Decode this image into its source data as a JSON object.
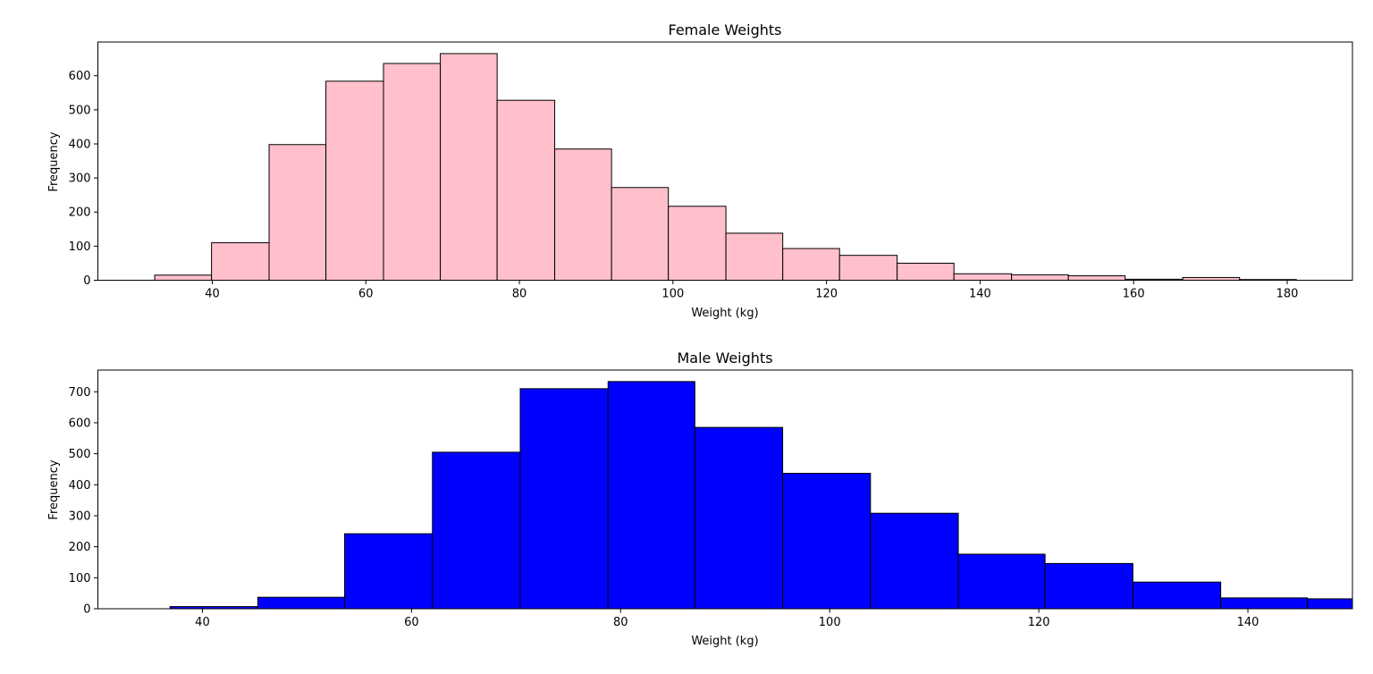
{
  "chart_data": [
    {
      "type": "bar",
      "title": "Female Weights",
      "xlabel": "Weight (kg)",
      "ylabel": "Frequency",
      "color": "#ffc0cb",
      "edgecolor": "#000000",
      "xlim": [
        25.1,
        188.5
      ],
      "ylim": [
        0,
        699
      ],
      "xticks": [
        40,
        60,
        80,
        100,
        120,
        140,
        160,
        180
      ],
      "yticks": [
        0,
        100,
        200,
        300,
        400,
        500,
        600
      ],
      "grid": false,
      "bins": [
        {
          "x0": 32.5,
          "x1": 39.9,
          "value": 15
        },
        {
          "x0": 39.9,
          "x1": 47.4,
          "value": 110
        },
        {
          "x0": 47.4,
          "x1": 54.8,
          "value": 398
        },
        {
          "x0": 54.8,
          "x1": 62.3,
          "value": 584
        },
        {
          "x0": 62.3,
          "x1": 69.7,
          "value": 636
        },
        {
          "x0": 69.7,
          "x1": 77.1,
          "value": 665
        },
        {
          "x0": 77.1,
          "x1": 84.6,
          "value": 528
        },
        {
          "x0": 84.6,
          "x1": 92.0,
          "value": 385
        },
        {
          "x0": 92.0,
          "x1": 99.4,
          "value": 272
        },
        {
          "x0": 99.4,
          "x1": 106.9,
          "value": 217
        },
        {
          "x0": 106.9,
          "x1": 114.3,
          "value": 138
        },
        {
          "x0": 114.3,
          "x1": 121.7,
          "value": 93
        },
        {
          "x0": 121.7,
          "x1": 129.2,
          "value": 73
        },
        {
          "x0": 129.2,
          "x1": 136.6,
          "value": 50
        },
        {
          "x0": 136.6,
          "x1": 144.1,
          "value": 19
        },
        {
          "x0": 144.1,
          "x1": 151.5,
          "value": 16
        },
        {
          "x0": 151.5,
          "x1": 158.9,
          "value": 13
        },
        {
          "x0": 158.9,
          "x1": 166.4,
          "value": 3
        },
        {
          "x0": 166.4,
          "x1": 173.8,
          "value": 8
        },
        {
          "x0": 173.8,
          "x1": 181.2,
          "value": 2
        }
      ]
    },
    {
      "type": "bar",
      "title": "Male Weights",
      "xlabel": "Weight (kg)",
      "ylabel": "Frequency",
      "color": "#0000ff",
      "edgecolor": "#000000",
      "xlim": [
        30,
        150
      ],
      "ylim": [
        0,
        770
      ],
      "xticks": [
        40,
        60,
        80,
        100,
        120,
        140
      ],
      "yticks": [
        0,
        100,
        200,
        300,
        400,
        500,
        600,
        700
      ],
      "grid": false,
      "bins": [
        {
          "x0": 36.9,
          "x1": 45.3,
          "value": 7
        },
        {
          "x0": 45.3,
          "x1": 53.6,
          "value": 37
        },
        {
          "x0": 53.6,
          "x1": 62.0,
          "value": 242
        },
        {
          "x0": 62.0,
          "x1": 70.4,
          "value": 505
        },
        {
          "x0": 70.4,
          "x1": 78.8,
          "value": 710
        },
        {
          "x0": 78.8,
          "x1": 87.1,
          "value": 733
        },
        {
          "x0": 87.1,
          "x1": 95.5,
          "value": 585
        },
        {
          "x0": 95.5,
          "x1": 103.9,
          "value": 437
        },
        {
          "x0": 103.9,
          "x1": 112.3,
          "value": 308
        },
        {
          "x0": 112.3,
          "x1": 120.6,
          "value": 176
        },
        {
          "x0": 120.6,
          "x1": 129.0,
          "value": 146
        },
        {
          "x0": 129.0,
          "x1": 137.4,
          "value": 86
        },
        {
          "x0": 137.4,
          "x1": 145.7,
          "value": 35
        },
        {
          "x0": 145.7,
          "x1": 154.1,
          "value": 32
        }
      ]
    }
  ]
}
